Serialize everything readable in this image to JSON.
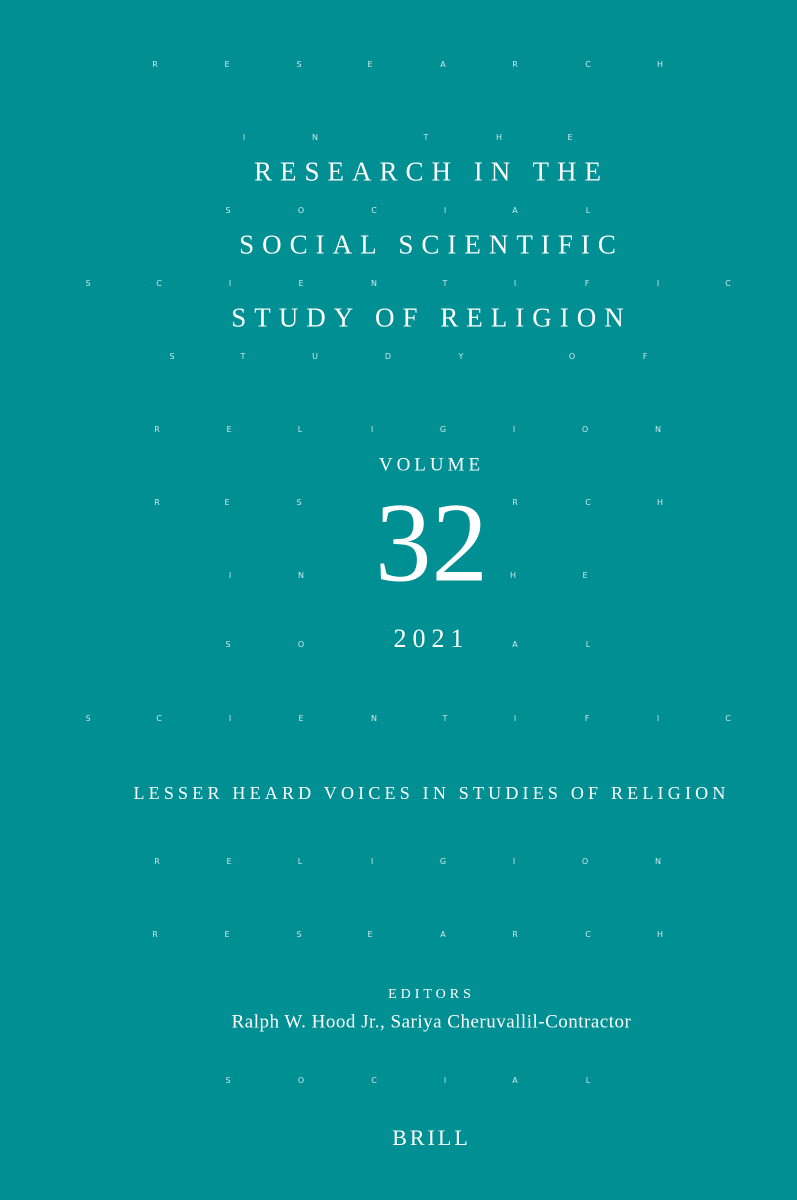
{
  "cover": {
    "background_color": "#008f93",
    "text_color": "#ffffff",
    "title_lines": [
      "RESEARCH IN THE",
      "SOCIAL SCIENTIFIC",
      "STUDY OF RELIGION"
    ],
    "volume_label": "VOLUME",
    "volume_number": "32",
    "year": "2021",
    "subtitle": "LESSER HEARD VOICES IN STUDIES OF RELIGION",
    "editors_label": "EDITORS",
    "editors_names": "Ralph W. Hood Jr., Sariya Cheruvallil-Contractor",
    "publisher": "BRILL"
  },
  "background_pattern": {
    "rows": [
      "RESEARCH",
      "INTHE",
      "SOCIAL",
      "SCIENTIFIC",
      "STUDYOF",
      "RELIGION",
      "RESRCH",
      "INHE",
      "SOAL",
      "SCIENTIFIC",
      "RELIGION",
      "RESEARCH",
      "SOCIAL"
    ]
  }
}
